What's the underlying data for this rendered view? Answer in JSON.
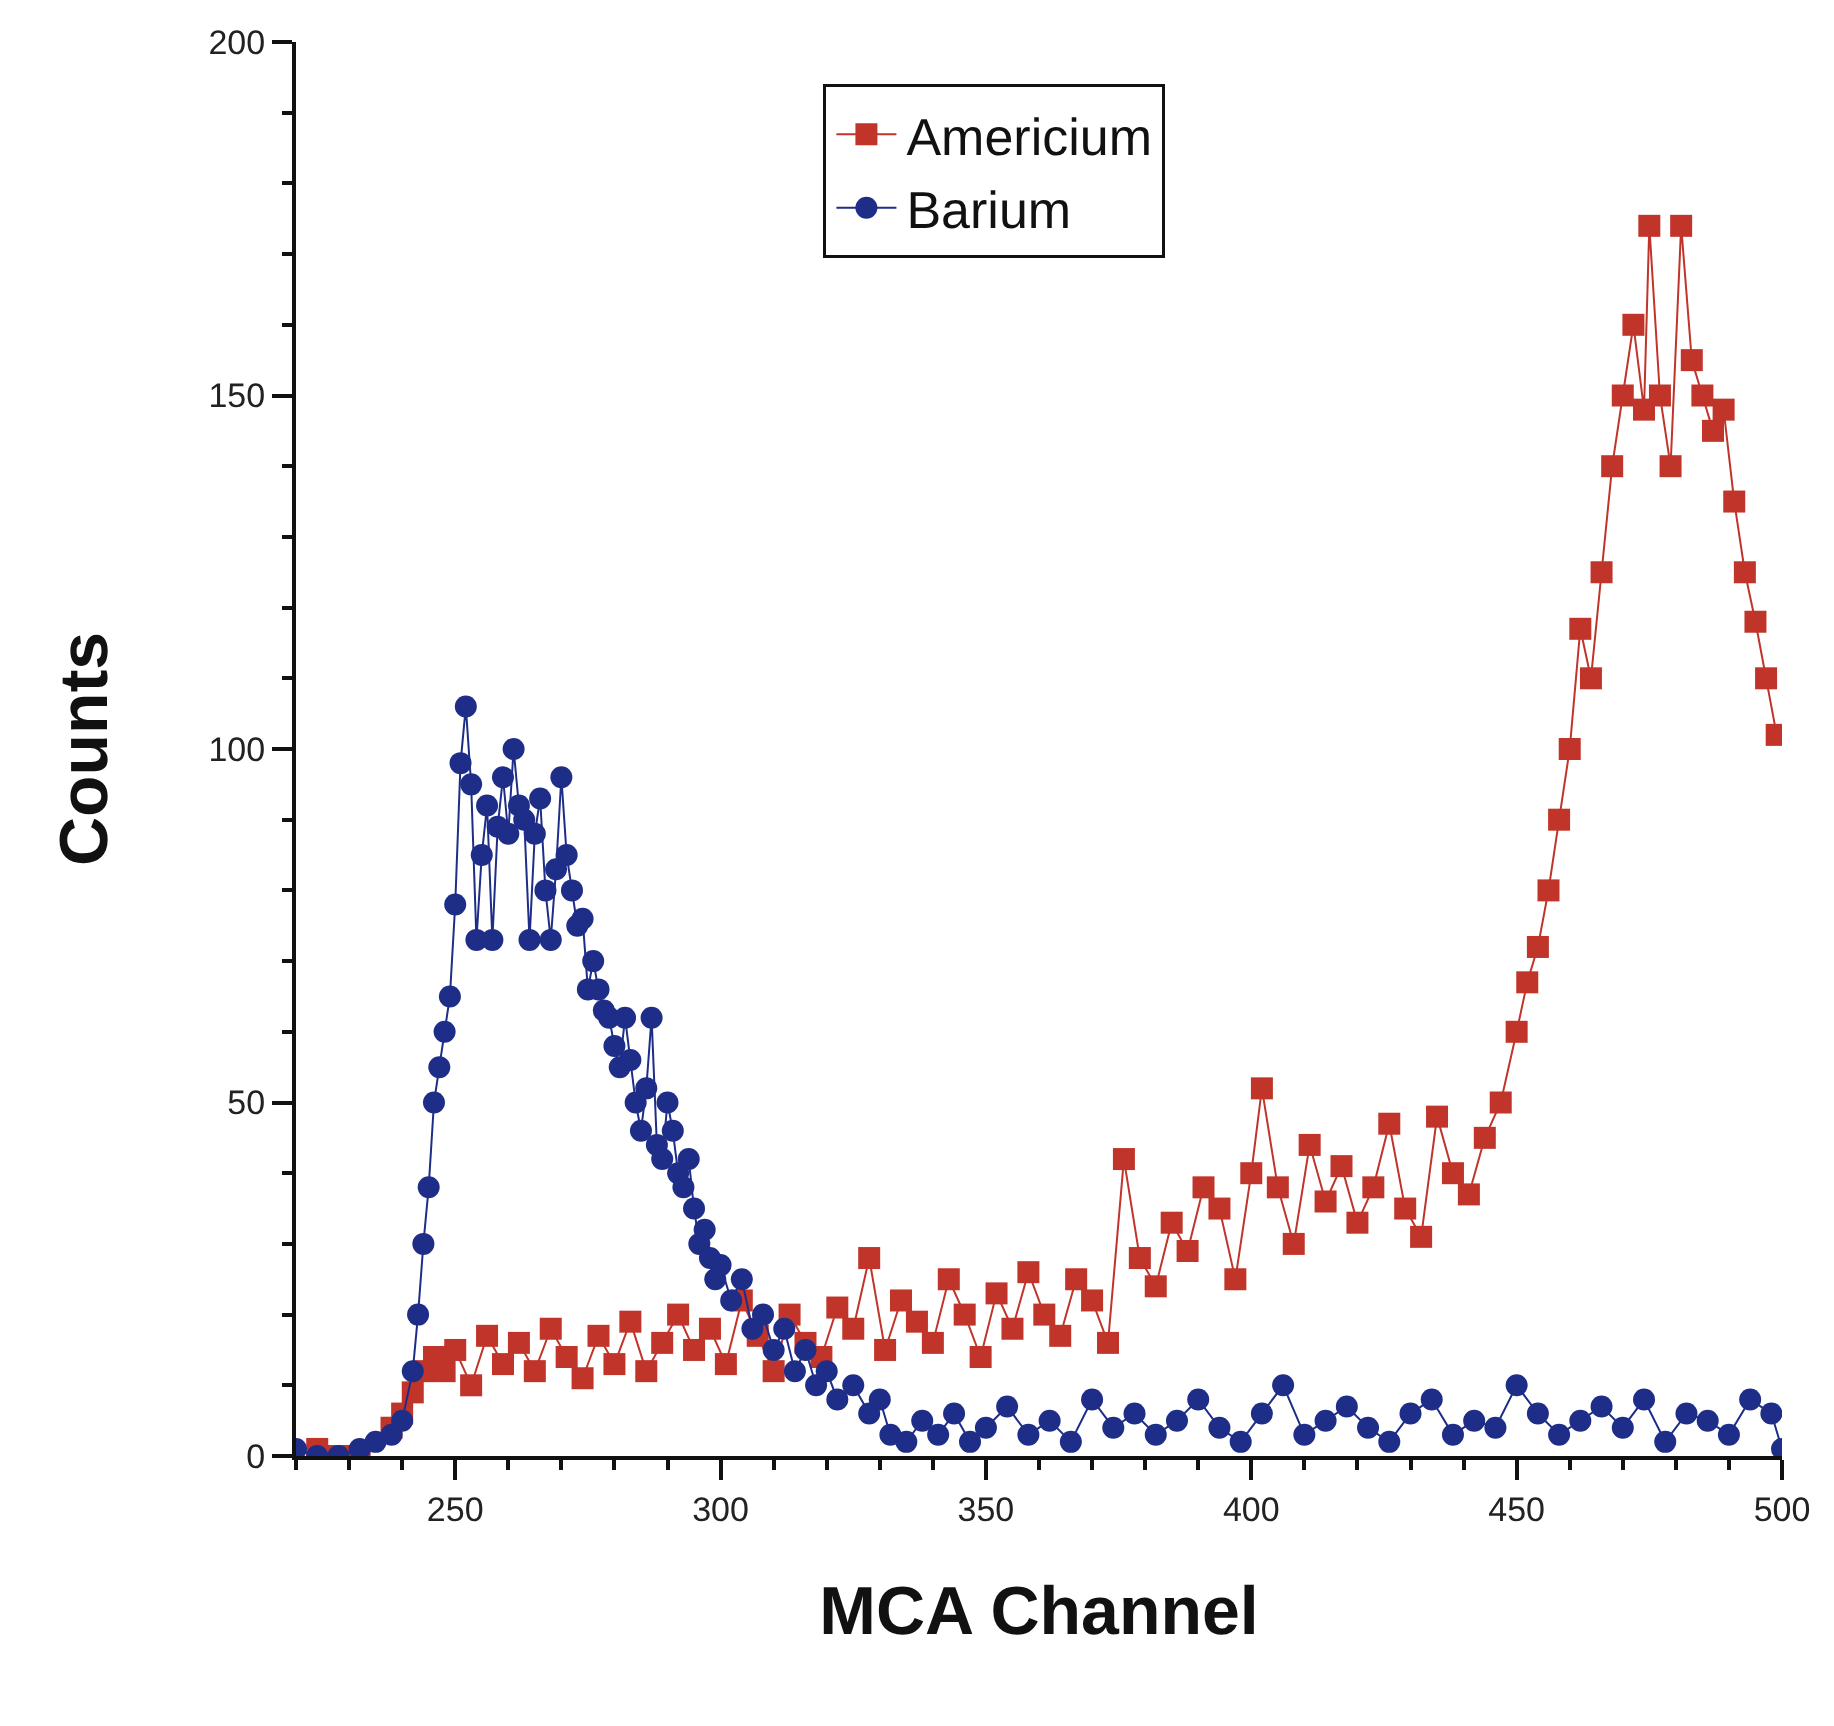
{
  "chart_data": {
    "type": "line",
    "xlabel": "MCA Channel",
    "ylabel": "Counts",
    "xlim": [
      220,
      500
    ],
    "xticks": [
      250,
      300,
      350,
      400,
      450,
      500
    ],
    "ylim": [
      0,
      200
    ],
    "yticks": [
      0,
      50,
      100,
      150,
      200
    ],
    "legend": "top",
    "line_style": "solid",
    "series": [
      {
        "name": "Americium",
        "color": "#c0342a",
        "marker": "square",
        "x": [
          224,
          228,
          232,
          238,
          240,
          242,
          244,
          246,
          248,
          250,
          253,
          256,
          259,
          262,
          265,
          268,
          271,
          274,
          277,
          280,
          283,
          286,
          289,
          292,
          295,
          298,
          301,
          304,
          307,
          310,
          313,
          316,
          319,
          322,
          325,
          328,
          331,
          334,
          337,
          340,
          343,
          346,
          349,
          352,
          355,
          358,
          361,
          364,
          367,
          370,
          373,
          376,
          379,
          382,
          385,
          388,
          391,
          394,
          397,
          400,
          402,
          405,
          408,
          411,
          414,
          417,
          420,
          423,
          426,
          429,
          432,
          435,
          438,
          441,
          444,
          447,
          450,
          452,
          454,
          456,
          458,
          460,
          462,
          464,
          466,
          468,
          470,
          472,
          474,
          475,
          477,
          479,
          481,
          483,
          485,
          487,
          489,
          491,
          493,
          495,
          497,
          499
        ],
        "values": [
          1,
          0,
          0,
          4,
          6,
          9,
          12,
          14,
          12,
          15,
          10,
          17,
          13,
          16,
          12,
          18,
          14,
          11,
          17,
          13,
          19,
          12,
          16,
          20,
          15,
          18,
          13,
          22,
          17,
          12,
          20,
          16,
          14,
          21,
          18,
          28,
          15,
          22,
          19,
          16,
          25,
          20,
          14,
          23,
          18,
          26,
          20,
          17,
          25,
          22,
          16,
          42,
          28,
          24,
          33,
          29,
          38,
          35,
          25,
          40,
          52,
          38,
          30,
          44,
          36,
          41,
          33,
          38,
          47,
          35,
          31,
          48,
          40,
          37,
          45,
          50,
          60,
          67,
          72,
          80,
          90,
          100,
          117,
          110,
          125,
          140,
          150,
          160,
          148,
          174,
          150,
          140,
          174,
          155,
          150,
          145,
          148,
          135,
          125,
          118,
          110,
          102
        ]
      },
      {
        "name": "Barium",
        "color": "#1e2d88",
        "marker": "circle",
        "x": [
          220,
          224,
          228,
          232,
          235,
          238,
          240,
          242,
          243,
          244,
          245,
          246,
          247,
          248,
          249,
          250,
          251,
          252,
          253,
          254,
          255,
          256,
          257,
          258,
          259,
          260,
          261,
          262,
          263,
          264,
          265,
          266,
          267,
          268,
          269,
          270,
          271,
          272,
          273,
          274,
          275,
          276,
          277,
          278,
          279,
          280,
          281,
          282,
          283,
          284,
          285,
          286,
          287,
          288,
          289,
          290,
          291,
          292,
          293,
          294,
          295,
          296,
          297,
          298,
          299,
          300,
          302,
          304,
          306,
          308,
          310,
          312,
          314,
          316,
          318,
          320,
          322,
          325,
          328,
          330,
          332,
          335,
          338,
          341,
          344,
          347,
          350,
          354,
          358,
          362,
          366,
          370,
          374,
          378,
          382,
          386,
          390,
          394,
          398,
          402,
          406,
          410,
          414,
          418,
          422,
          426,
          430,
          434,
          438,
          442,
          446,
          450,
          454,
          458,
          462,
          466,
          470,
          474,
          478,
          482,
          486,
          490,
          494,
          498,
          500
        ],
        "values": [
          1,
          0,
          0,
          1,
          2,
          3,
          5,
          12,
          20,
          30,
          38,
          50,
          55,
          60,
          65,
          78,
          98,
          106,
          95,
          73,
          85,
          92,
          73,
          89,
          96,
          88,
          100,
          92,
          90,
          73,
          88,
          93,
          80,
          73,
          83,
          96,
          85,
          80,
          75,
          76,
          66,
          70,
          66,
          63,
          62,
          58,
          55,
          62,
          56,
          50,
          46,
          52,
          62,
          44,
          42,
          50,
          46,
          40,
          38,
          42,
          35,
          30,
          32,
          28,
          25,
          27,
          22,
          25,
          18,
          20,
          15,
          18,
          12,
          15,
          10,
          12,
          8,
          10,
          6,
          8,
          3,
          2,
          5,
          3,
          6,
          2,
          4,
          7,
          3,
          5,
          2,
          8,
          4,
          6,
          3,
          5,
          8,
          4,
          2,
          6,
          10,
          3,
          5,
          7,
          4,
          2,
          6,
          8,
          3,
          5,
          4,
          10,
          6,
          3,
          5,
          7,
          4,
          8,
          2,
          6,
          5,
          3,
          8,
          6,
          1
        ]
      }
    ]
  }
}
